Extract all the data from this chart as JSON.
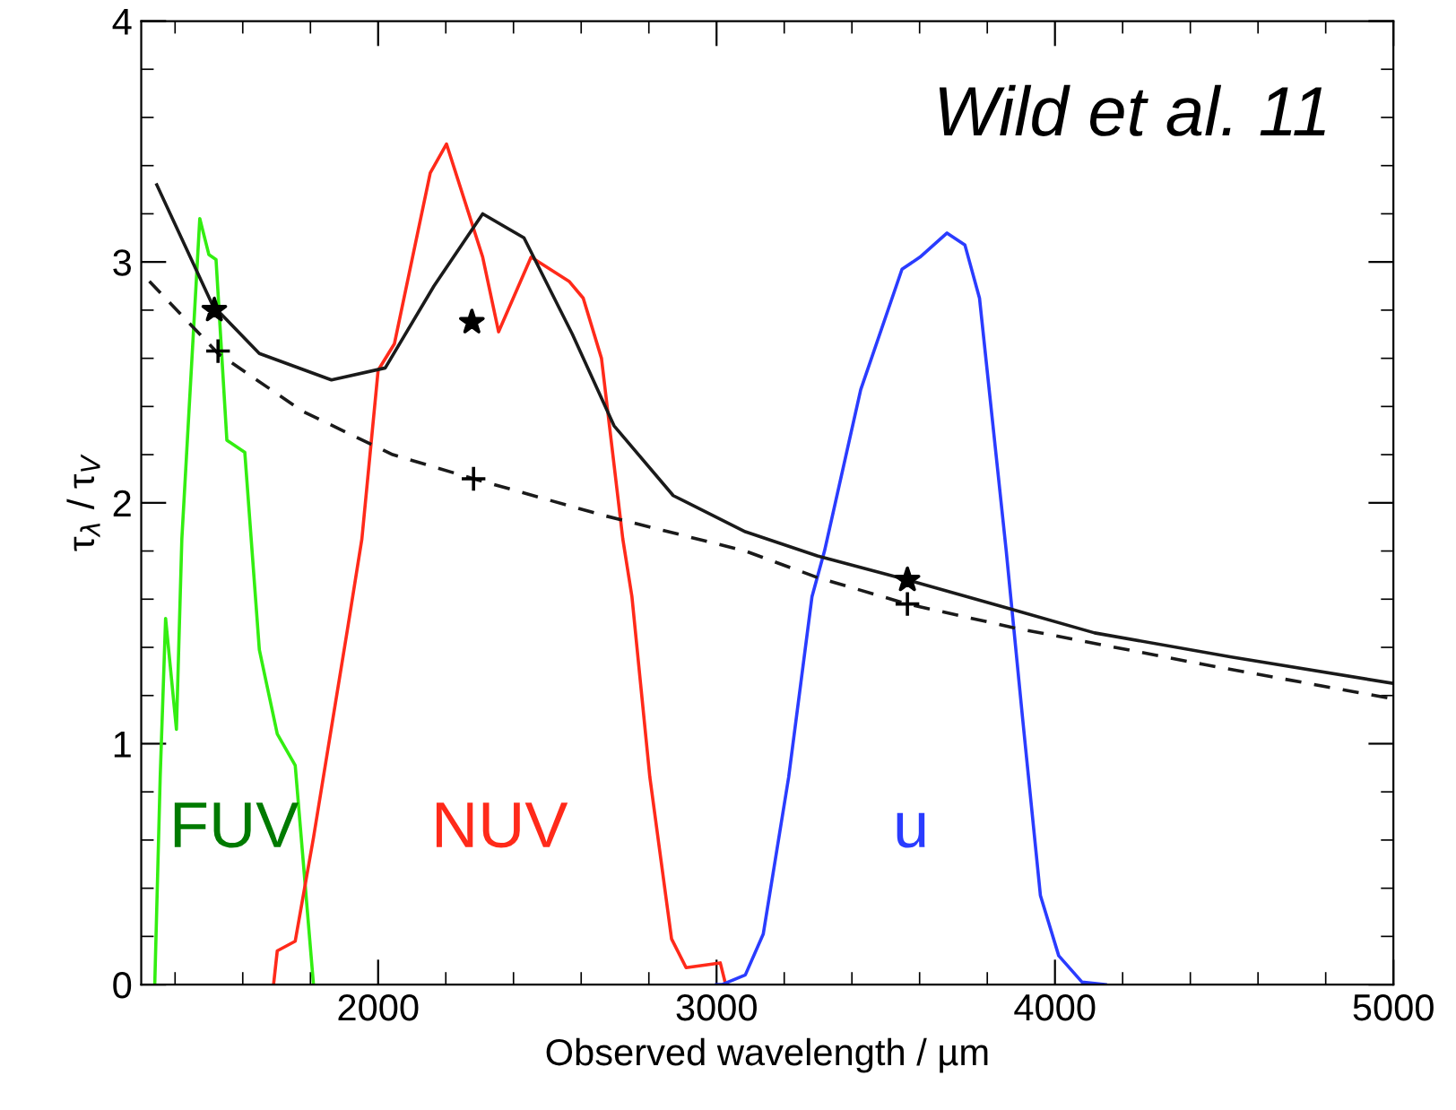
{
  "chart_data": {
    "type": "line",
    "xlabel": "Observed wavelength / µm",
    "ylabel": "τ$_{λ}$ / τ$_{V}$",
    "xlim": [
      1300,
      5000
    ],
    "ylim": [
      0,
      4
    ],
    "xticks": [
      2000,
      3000,
      4000,
      5000
    ],
    "yticks": [
      0,
      1,
      2,
      3,
      4
    ],
    "grid": false,
    "legend": false,
    "annotations": [
      "Wild et al. 11"
    ],
    "series": [
      {
        "name": "FUV",
        "color": "#33ee11",
        "line_style": "solid",
        "x": [
          1340,
          1356,
          1372,
          1404,
          1420,
          1473,
          1500,
          1521,
          1553,
          1606,
          1649,
          1702,
          1755,
          1809
        ],
        "values": [
          0,
          0.86,
          1.52,
          1.06,
          1.85,
          3.18,
          3.03,
          3.01,
          2.26,
          2.21,
          1.39,
          1.04,
          0.91,
          0
        ]
      },
      {
        "name": "NUV",
        "color": "#ff2a1a",
        "line_style": "solid",
        "x": [
          1691,
          1702,
          1755,
          1809,
          1910,
          1952,
          2000,
          2048,
          2154,
          2202,
          2309,
          2356,
          2452,
          2564,
          2606,
          2660,
          2723,
          2750,
          2803,
          2867,
          2910,
          3011,
          3027
        ],
        "values": [
          0,
          0.14,
          0.18,
          0.61,
          1.48,
          1.85,
          2.55,
          2.66,
          3.37,
          3.49,
          3.02,
          2.71,
          3.02,
          2.92,
          2.85,
          2.6,
          1.85,
          1.61,
          0.86,
          0.19,
          0.07,
          0.09,
          0
        ]
      },
      {
        "name": "u",
        "color": "#2a3cff",
        "line_style": "solid",
        "x": [
          3000,
          3016,
          3085,
          3138,
          3213,
          3282,
          3319,
          3426,
          3548,
          3601,
          3681,
          3734,
          3777,
          3856,
          3904,
          3957,
          4011,
          4080,
          4149
        ],
        "values": [
          0,
          0,
          0.04,
          0.21,
          0.86,
          1.61,
          1.8,
          2.47,
          2.97,
          3.02,
          3.12,
          3.07,
          2.85,
          1.8,
          1.11,
          0.37,
          0.12,
          0.01,
          0
        ]
      },
      {
        "color": "#1a1a1a",
        "line_style": "solid",
        "x": [
          1346,
          1511,
          1649,
          1862,
          2021,
          2165,
          2309,
          2431,
          2574,
          2697,
          2872,
          3085,
          3298,
          3564,
          3867,
          4117,
          4521,
          5000
        ],
        "values": [
          3.32,
          2.82,
          2.62,
          2.51,
          2.56,
          2.9,
          3.2,
          3.1,
          2.7,
          2.32,
          2.03,
          1.88,
          1.78,
          1.68,
          1.56,
          1.46,
          1.36,
          1.25
        ]
      },
      {
        "color": "#1a1a1a",
        "line_style": "dashed",
        "x": [
          1324,
          1527,
          1777,
          2043,
          2282,
          2660,
          3085,
          3298,
          3564,
          3883,
          4436,
          4984
        ],
        "values": [
          2.92,
          2.62,
          2.38,
          2.2,
          2.1,
          1.95,
          1.8,
          1.69,
          1.58,
          1.48,
          1.33,
          1.19
        ]
      },
      {
        "color": "#000000",
        "type": "scatter",
        "marker": "star",
        "x": [
          1516,
          2277,
          3564
        ],
        "values": [
          2.8,
          2.75,
          1.68
        ]
      },
      {
        "color": "#000000",
        "type": "scatter",
        "marker": "cross",
        "x": [
          1527,
          2282,
          3564
        ],
        "values": [
          2.63,
          2.1,
          1.58
        ]
      }
    ]
  }
}
